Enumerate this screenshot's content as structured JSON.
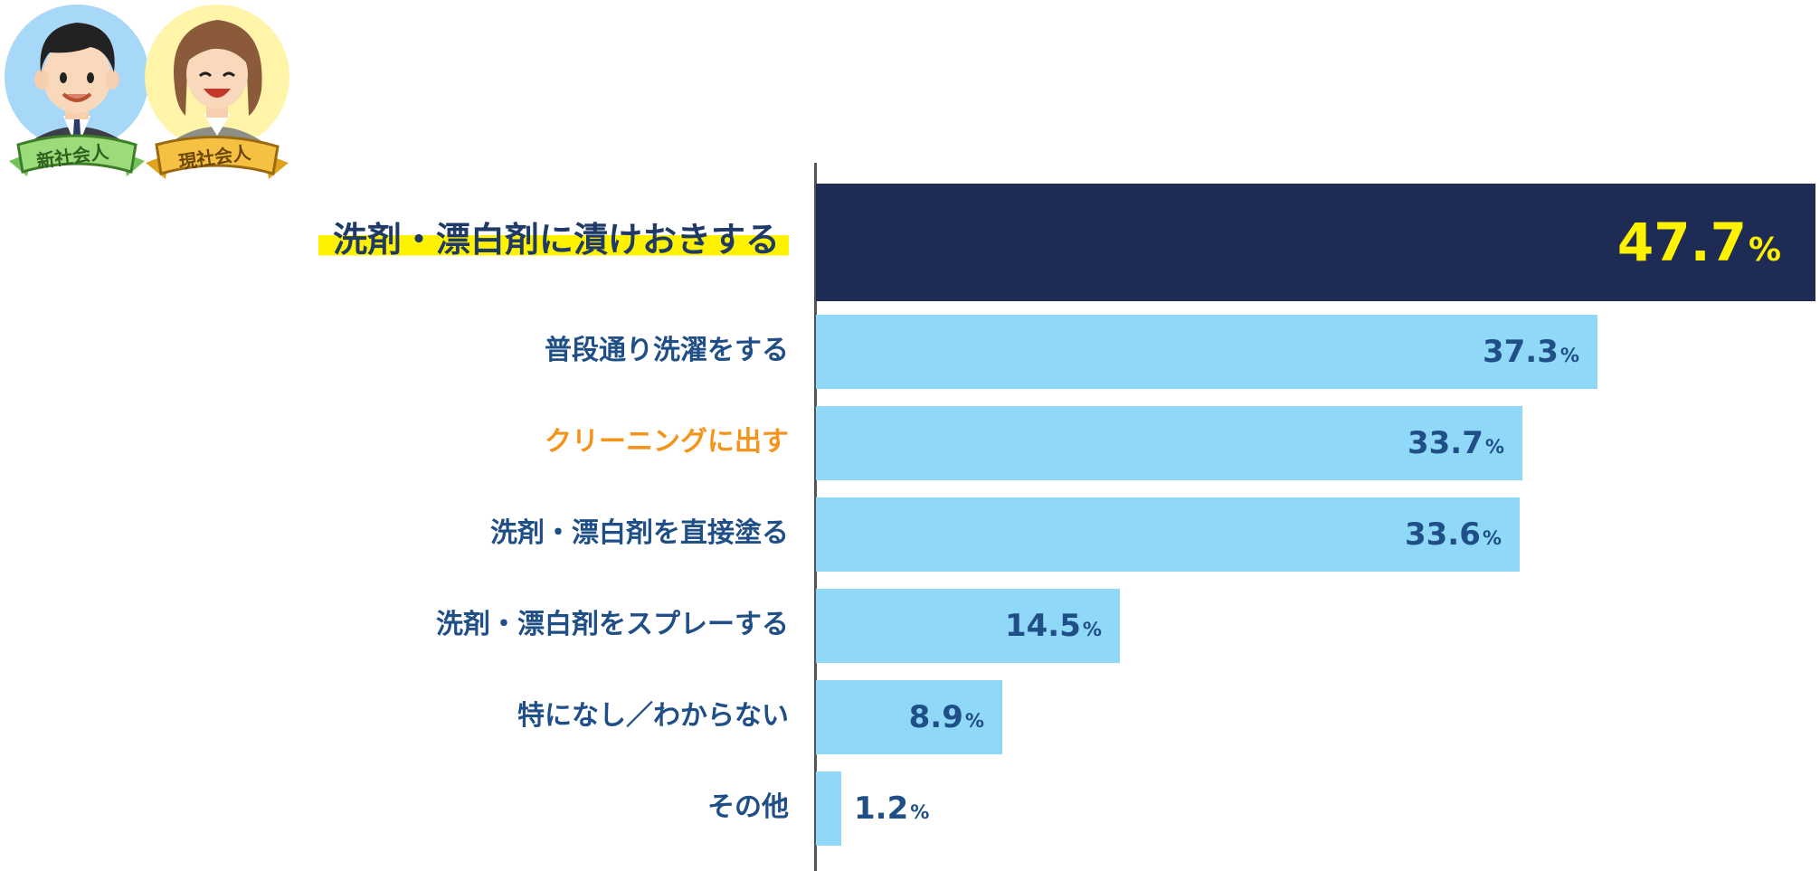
{
  "badges": {
    "new_employee": "新社会人",
    "current_employee": "現社会人"
  },
  "colors": {
    "highlight_bar": "#1e2b55",
    "bar": "#8fd8f8",
    "highlight_value": "#fff200",
    "value": "#1f4f86",
    "orange_label": "#f5941d",
    "label": "#1f4f86"
  },
  "chart_data": {
    "type": "bar",
    "orientation": "horizontal",
    "unit": "%",
    "categories": [
      "洗剤・漂白剤に漬けおきする",
      "普段通り洗濯をする",
      "クリーニングに出す",
      "洗剤・漂白剤を直接塗る",
      "洗剤・漂白剤をスプレーする",
      "特になし／わからない",
      "その他"
    ],
    "values": [
      47.7,
      37.3,
      33.7,
      33.6,
      14.5,
      8.9,
      1.2
    ],
    "value_labels": [
      "47.7",
      "37.3",
      "33.7",
      "33.6",
      "14.5",
      "8.9",
      "1.2"
    ],
    "highlighted_index": 0,
    "orange_label_index": 2,
    "grid": false,
    "legend": "none"
  }
}
